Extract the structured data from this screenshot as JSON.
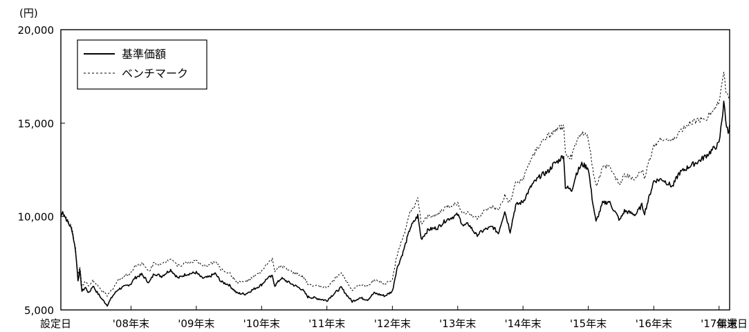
{
  "chart_data": {
    "type": "line",
    "unit_label": "(円)",
    "ylim": [
      5000,
      20000
    ],
    "y_ticks": [
      "5,000",
      "10,000",
      "15,000",
      "20,000"
    ],
    "x_ticks": [
      "設定日",
      "'08年末",
      "'09年末",
      "'10年末",
      "'11年末",
      "'12年末",
      "'13年末",
      "'14年末",
      "'15年末",
      "'16年末",
      "'17年末",
      "償還日"
    ],
    "x_start_date": "2007-12-05",
    "x_end_date": "2018-02-28",
    "grid": false,
    "legend_position": "top-left",
    "series": [
      {
        "name": "基準価額",
        "style": "solid",
        "color": "#000000",
        "points": [
          [
            "2007-12-05",
            10000
          ],
          [
            "2007-12-15",
            10250
          ],
          [
            "2008-01-10",
            9750
          ],
          [
            "2008-02-05",
            9300
          ],
          [
            "2008-02-25",
            8200
          ],
          [
            "2008-03-10",
            6600
          ],
          [
            "2008-03-20",
            7100
          ],
          [
            "2008-04-01",
            6000
          ],
          [
            "2008-04-20",
            6200
          ],
          [
            "2008-05-10",
            5900
          ],
          [
            "2008-06-01",
            6300
          ],
          [
            "2008-06-20",
            6000
          ],
          [
            "2008-07-20",
            5600
          ],
          [
            "2008-08-20",
            5250
          ],
          [
            "2008-09-20",
            5750
          ],
          [
            "2008-10-20",
            6100
          ],
          [
            "2008-12-31",
            6400
          ],
          [
            "2009-01-20",
            6700
          ],
          [
            "2009-03-01",
            6900
          ],
          [
            "2009-04-10",
            6450
          ],
          [
            "2009-05-10",
            6950
          ],
          [
            "2009-06-20",
            6800
          ],
          [
            "2009-08-10",
            7150
          ],
          [
            "2009-09-20",
            6700
          ],
          [
            "2009-11-01",
            6900
          ],
          [
            "2009-12-31",
            7000
          ],
          [
            "2010-02-01",
            6700
          ],
          [
            "2010-03-10",
            6750
          ],
          [
            "2010-04-15",
            6950
          ],
          [
            "2010-05-20",
            6500
          ],
          [
            "2010-07-01",
            6350
          ],
          [
            "2010-08-15",
            5900
          ],
          [
            "2010-10-01",
            5850
          ],
          [
            "2010-11-15",
            6100
          ],
          [
            "2010-12-31",
            6350
          ],
          [
            "2011-02-01",
            6700
          ],
          [
            "2011-03-01",
            6800
          ],
          [
            "2011-03-15",
            6300
          ],
          [
            "2011-04-20",
            6700
          ],
          [
            "2011-06-15",
            6400
          ],
          [
            "2011-08-15",
            6100
          ],
          [
            "2011-09-15",
            5700
          ],
          [
            "2011-10-20",
            5650
          ],
          [
            "2011-12-31",
            5500
          ],
          [
            "2012-01-20",
            5700
          ],
          [
            "2012-02-25",
            6000
          ],
          [
            "2012-03-20",
            6200
          ],
          [
            "2012-04-20",
            5800
          ],
          [
            "2012-05-20",
            5450
          ],
          [
            "2012-07-01",
            5650
          ],
          [
            "2012-08-15",
            5550
          ],
          [
            "2012-09-20",
            5900
          ],
          [
            "2012-11-20",
            5750
          ],
          [
            "2012-12-31",
            6000
          ],
          [
            "2013-01-25",
            7200
          ],
          [
            "2013-03-01",
            8100
          ],
          [
            "2013-04-10",
            9400
          ],
          [
            "2013-05-22",
            10050
          ],
          [
            "2013-06-10",
            8800
          ],
          [
            "2013-07-20",
            9300
          ],
          [
            "2013-09-10",
            9400
          ],
          [
            "2013-10-25",
            9800
          ],
          [
            "2013-12-31",
            10100
          ],
          [
            "2014-02-01",
            9500
          ],
          [
            "2014-03-01",
            9600
          ],
          [
            "2014-04-15",
            9000
          ],
          [
            "2014-06-01",
            9300
          ],
          [
            "2014-07-15",
            9450
          ],
          [
            "2014-08-15",
            9100
          ],
          [
            "2014-09-20",
            10300
          ],
          [
            "2014-10-20",
            9200
          ],
          [
            "2014-11-20",
            10600
          ],
          [
            "2014-12-31",
            10800
          ],
          [
            "2015-02-20",
            11700
          ],
          [
            "2015-04-10",
            12200
          ],
          [
            "2015-05-20",
            12400
          ],
          [
            "2015-06-20",
            12800
          ],
          [
            "2015-07-20",
            13000
          ],
          [
            "2015-08-15",
            13300
          ],
          [
            "2015-08-25",
            11600
          ],
          [
            "2015-09-29",
            11400
          ],
          [
            "2015-10-25",
            12300
          ],
          [
            "2015-11-25",
            12800
          ],
          [
            "2015-12-31",
            12600
          ],
          [
            "2016-01-21",
            11000
          ],
          [
            "2016-02-12",
            9700
          ],
          [
            "2016-03-20",
            10700
          ],
          [
            "2016-04-25",
            10800
          ],
          [
            "2016-06-24",
            9800
          ],
          [
            "2016-07-20",
            10300
          ],
          [
            "2016-08-20",
            10200
          ],
          [
            "2016-09-20",
            10100
          ],
          [
            "2016-10-25",
            10600
          ],
          [
            "2016-11-10",
            10200
          ],
          [
            "2016-12-31",
            11900
          ],
          [
            "2017-02-15",
            12000
          ],
          [
            "2017-04-15",
            11600
          ],
          [
            "2017-05-20",
            12300
          ],
          [
            "2017-07-20",
            12700
          ],
          [
            "2017-09-15",
            13000
          ],
          [
            "2017-10-25",
            13300
          ],
          [
            "2017-12-31",
            13900
          ],
          [
            "2018-01-20",
            15500
          ],
          [
            "2018-01-26",
            16200
          ],
          [
            "2018-02-06",
            15100
          ],
          [
            "2018-02-20",
            14500
          ],
          [
            "2018-02-28",
            14900
          ]
        ]
      },
      {
        "name": "ベンチマーク",
        "style": "dashed",
        "color": "#000000",
        "points": [
          [
            "2007-12-05",
            10000
          ],
          [
            "2007-12-15",
            10250
          ],
          [
            "2008-01-10",
            9800
          ],
          [
            "2008-02-05",
            9400
          ],
          [
            "2008-02-25",
            8300
          ],
          [
            "2008-03-10",
            6800
          ],
          [
            "2008-03-20",
            7300
          ],
          [
            "2008-04-01",
            6300
          ],
          [
            "2008-04-20",
            6500
          ],
          [
            "2008-05-10",
            6250
          ],
          [
            "2008-06-01",
            6600
          ],
          [
            "2008-06-20",
            6350
          ],
          [
            "2008-07-20",
            6050
          ],
          [
            "2008-08-20",
            5750
          ],
          [
            "2008-09-20",
            6150
          ],
          [
            "2008-10-20",
            6600
          ],
          [
            "2008-12-31",
            7000
          ],
          [
            "2009-01-20",
            7350
          ],
          [
            "2009-03-01",
            7500
          ],
          [
            "2009-04-10",
            7050
          ],
          [
            "2009-05-10",
            7550
          ],
          [
            "2009-06-20",
            7400
          ],
          [
            "2009-08-10",
            7800
          ],
          [
            "2009-09-20",
            7350
          ],
          [
            "2009-11-01",
            7500
          ],
          [
            "2009-12-31",
            7650
          ],
          [
            "2010-02-01",
            7350
          ],
          [
            "2010-03-10",
            7400
          ],
          [
            "2010-04-15",
            7600
          ],
          [
            "2010-05-20",
            7150
          ],
          [
            "2010-07-01",
            7000
          ],
          [
            "2010-08-15",
            6500
          ],
          [
            "2010-10-01",
            6500
          ],
          [
            "2010-11-15",
            6750
          ],
          [
            "2010-12-31",
            7050
          ],
          [
            "2011-02-01",
            7500
          ],
          [
            "2011-03-01",
            7700
          ],
          [
            "2011-03-15",
            7100
          ],
          [
            "2011-04-20",
            7350
          ],
          [
            "2011-06-15",
            7050
          ],
          [
            "2011-08-15",
            6800
          ],
          [
            "2011-09-15",
            6400
          ],
          [
            "2011-10-20",
            6300
          ],
          [
            "2011-12-31",
            6200
          ],
          [
            "2012-01-20",
            6400
          ],
          [
            "2012-02-25",
            6800
          ],
          [
            "2012-03-20",
            7000
          ],
          [
            "2012-04-20",
            6500
          ],
          [
            "2012-05-20",
            6100
          ],
          [
            "2012-07-01",
            6350
          ],
          [
            "2012-08-15",
            6250
          ],
          [
            "2012-09-20",
            6600
          ],
          [
            "2012-11-20",
            6400
          ],
          [
            "2012-12-31",
            6650
          ],
          [
            "2013-01-25",
            7900
          ],
          [
            "2013-03-01",
            8900
          ],
          [
            "2013-04-10",
            10200
          ],
          [
            "2013-05-22",
            10900
          ],
          [
            "2013-06-10",
            9600
          ],
          [
            "2013-07-20",
            10000
          ],
          [
            "2013-09-10",
            10100
          ],
          [
            "2013-10-25",
            10500
          ],
          [
            "2013-12-31",
            10700
          ],
          [
            "2014-02-01",
            10150
          ],
          [
            "2014-03-01",
            10200
          ],
          [
            "2014-04-15",
            9900
          ],
          [
            "2014-06-01",
            10300
          ],
          [
            "2014-07-15",
            10500
          ],
          [
            "2014-08-15",
            10300
          ],
          [
            "2014-09-20",
            11100
          ],
          [
            "2014-10-20",
            10700
          ],
          [
            "2014-11-20",
            11800
          ],
          [
            "2014-12-31",
            12000
          ],
          [
            "2015-02-20",
            13200
          ],
          [
            "2015-04-10",
            13900
          ],
          [
            "2015-05-20",
            14300
          ],
          [
            "2015-06-20",
            14500
          ],
          [
            "2015-07-20",
            14700
          ],
          [
            "2015-08-15",
            14800
          ],
          [
            "2015-08-25",
            13300
          ],
          [
            "2015-09-29",
            13200
          ],
          [
            "2015-10-25",
            14000
          ],
          [
            "2015-11-25",
            14500
          ],
          [
            "2015-12-31",
            14200
          ],
          [
            "2016-01-21",
            12800
          ],
          [
            "2016-02-12",
            11600
          ],
          [
            "2016-03-20",
            12600
          ],
          [
            "2016-04-25",
            12700
          ],
          [
            "2016-06-24",
            11700
          ],
          [
            "2016-07-20",
            12200
          ],
          [
            "2016-08-20",
            12100
          ],
          [
            "2016-09-20",
            12000
          ],
          [
            "2016-10-25",
            12500
          ],
          [
            "2016-11-10",
            12100
          ],
          [
            "2016-12-31",
            13800
          ],
          [
            "2017-02-15",
            14200
          ],
          [
            "2017-04-15",
            14000
          ],
          [
            "2017-05-20",
            14500
          ],
          [
            "2017-07-20",
            15000
          ],
          [
            "2017-09-15",
            15200
          ],
          [
            "2017-10-25",
            15300
          ],
          [
            "2017-12-31",
            16100
          ],
          [
            "2018-01-20",
            17200
          ],
          [
            "2018-01-26",
            17900
          ],
          [
            "2018-02-06",
            16800
          ],
          [
            "2018-02-20",
            16300
          ],
          [
            "2018-02-28",
            16500
          ]
        ]
      }
    ]
  }
}
